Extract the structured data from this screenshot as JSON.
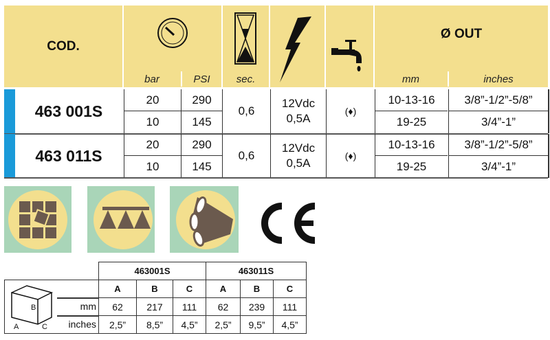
{
  "header": {
    "code": "COD.",
    "bar": "bar",
    "psi": "PSI",
    "sec": "sec.",
    "out": "Ø OUT",
    "mm": "mm",
    "inches": "inches"
  },
  "accent": "#1a9ad9",
  "products": [
    {
      "code": "463 001S",
      "rows": [
        {
          "bar": "20",
          "psi": "290",
          "mm": "10-13-16",
          "inches": "3/8”-1/2”-5/8”"
        },
        {
          "bar": "10",
          "psi": "145",
          "mm": "19-25",
          "inches": "3/4”-1”"
        }
      ],
      "sec": "0,6",
      "volt": "12Vdc",
      "amp": "0,5A",
      "flow": "(♦)"
    },
    {
      "code": "463 011S",
      "rows": [
        {
          "bar": "20",
          "psi": "290",
          "mm": "10-13-16",
          "inches": "3/8”-1/2”-5/8”"
        },
        {
          "bar": "10",
          "psi": "145",
          "mm": "19-25",
          "inches": "3/4”-1”"
        }
      ],
      "sec": "0,6",
      "volt": "12Vdc",
      "amp": "0,5A",
      "flow": "(♦)"
    }
  ],
  "icons": [
    "pressure-gauge-icon",
    "hourglass-icon",
    "lightning-icon",
    "tap-icon",
    "tiles-icon",
    "spray-boom-icon",
    "multi-nozzle-icon",
    "ce-mark"
  ],
  "dimensions": {
    "models": [
      "463001S",
      "463011S"
    ],
    "cols": [
      "A",
      "B",
      "C",
      "A",
      "B",
      "C"
    ],
    "box_labels": {
      "a": "A",
      "b": "B",
      "c": "C"
    },
    "mm_label": "mm",
    "inches_label": "inches",
    "mm": [
      "62",
      "217",
      "111",
      "62",
      "239",
      "111"
    ],
    "inches": [
      "2,5”",
      "8,5”",
      "4,5”",
      "2,5”",
      "9,5”",
      "4,5”"
    ]
  }
}
